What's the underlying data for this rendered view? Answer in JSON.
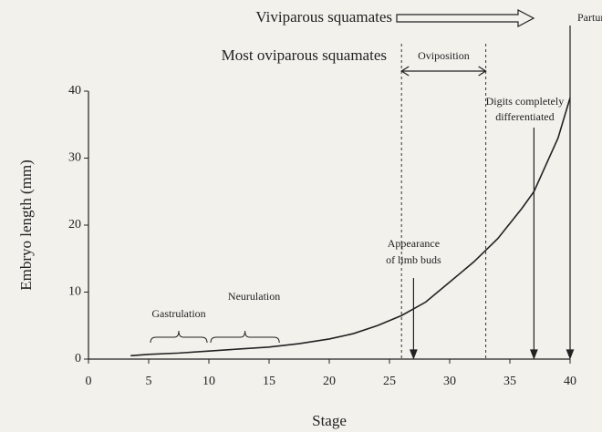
{
  "chart_data": {
    "type": "line",
    "xlabel": "Stage",
    "ylabel": "Embryo length (mm)",
    "x": [
      3.5,
      5,
      7.5,
      10,
      12.5,
      15,
      17.5,
      20,
      22,
      24,
      26,
      28,
      30,
      32,
      34,
      36,
      37,
      38,
      39,
      40
    ],
    "series": [
      {
        "color": "#222222",
        "values": [
          0.5,
          0.7,
          0.9,
          1.2,
          1.5,
          1.8,
          2.3,
          3,
          3.8,
          5,
          6.5,
          8.5,
          11.5,
          14.5,
          18,
          22.5,
          25,
          29,
          33,
          39
        ]
      }
    ],
    "xlim": [
      0,
      40
    ],
    "ylim": [
      0,
      40
    ],
    "xticks": [
      0,
      5,
      10,
      15,
      20,
      25,
      30,
      35,
      40
    ],
    "yticks": [
      0,
      10,
      20,
      30,
      40
    ],
    "periods": [
      {
        "label": "Gastrulation",
        "range": [
          5,
          10
        ]
      },
      {
        "label": "Neurulation",
        "range": [
          10,
          16
        ]
      }
    ],
    "events": [
      {
        "label": [
          "Appearance",
          "of limb buds"
        ],
        "stage": 27
      },
      {
        "label": [
          "Digits completely",
          "differentiated"
        ],
        "stage": 37
      },
      {
        "label": [
          "Parturition"
        ],
        "stage": 40
      }
    ],
    "oviposition": {
      "label": "Oviposition",
      "range": [
        26,
        33
      ]
    },
    "viviparous_label": "Viviparous squamates",
    "oviparous_label": "Most oviparous squamates"
  }
}
